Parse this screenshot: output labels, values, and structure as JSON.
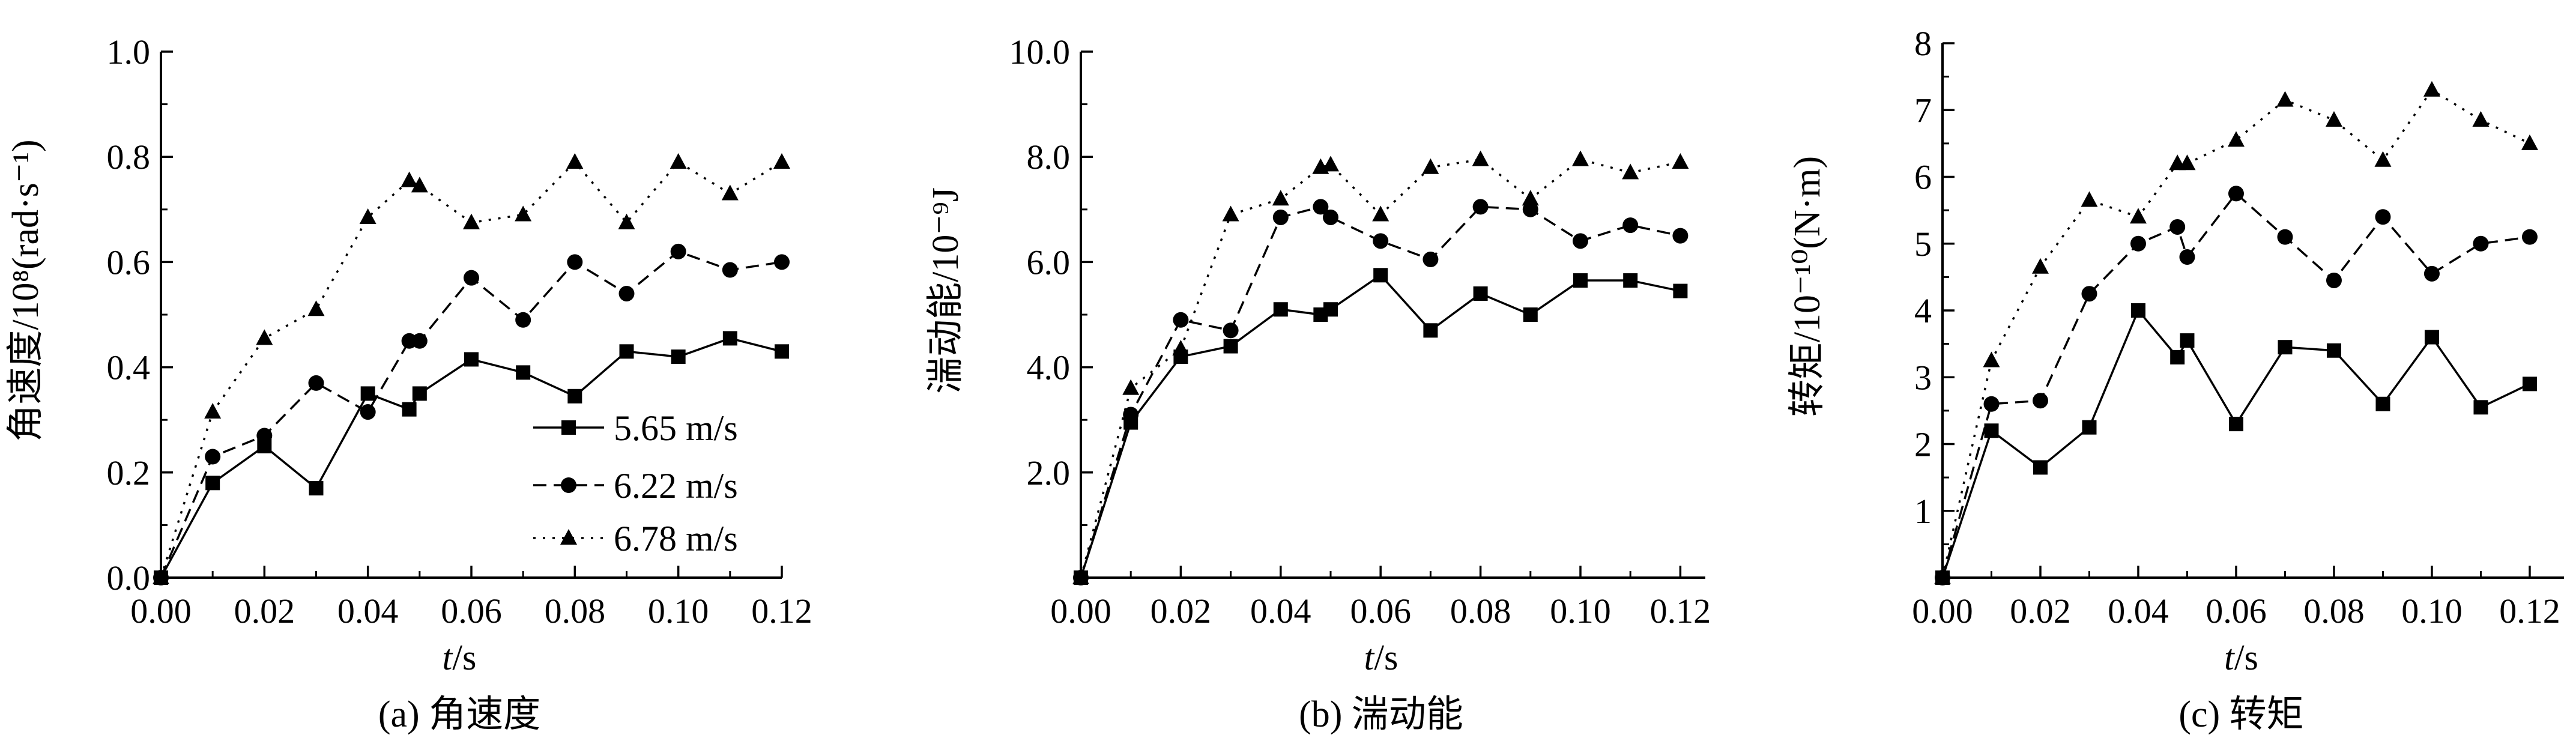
{
  "legend": {
    "placement": "lower-right of panel (a)",
    "entries": [
      {
        "label": "5.65 m/s",
        "marker": "square",
        "line": "solid"
      },
      {
        "label": "6.22 m/s",
        "marker": "circle",
        "line": "dashed"
      },
      {
        "label": "6.78 m/s",
        "marker": "triangle",
        "line": "dotted"
      }
    ]
  },
  "chart_data": [
    {
      "type": "line",
      "caption": "(a) 角速度",
      "ylabel": "角速度/10⁸(rad·s⁻¹)",
      "xlabel_italic": "t",
      "xlabel_unit": "/s",
      "xlim": [
        0,
        0.12
      ],
      "ylim": [
        0,
        1.0
      ],
      "xticks": [
        "0.00",
        "0.02",
        "0.04",
        "0.06",
        "0.08",
        "0.10",
        "0.12"
      ],
      "yticks": [
        "0.0",
        "0.2",
        "0.4",
        "0.6",
        "0.8",
        "1.0"
      ],
      "grid": false,
      "x": [
        0.0,
        0.01,
        0.02,
        0.03,
        0.04,
        0.048,
        0.05,
        0.06,
        0.07,
        0.08,
        0.09,
        0.1,
        0.11,
        0.12
      ],
      "series": [
        {
          "name": "5.65 m/s",
          "values": [
            0.0,
            0.18,
            0.25,
            0.17,
            0.35,
            0.32,
            0.35,
            0.415,
            0.39,
            0.345,
            0.43,
            0.42,
            0.455,
            0.43
          ]
        },
        {
          "name": "6.22 m/s",
          "values": [
            0.0,
            0.23,
            0.27,
            0.37,
            0.315,
            0.45,
            0.45,
            0.57,
            0.49,
            0.6,
            0.54,
            0.62,
            0.585,
            0.6
          ]
        },
        {
          "name": "6.78 m/s",
          "values": [
            0.0,
            0.315,
            0.455,
            0.51,
            0.685,
            0.755,
            0.745,
            0.675,
            0.69,
            0.79,
            0.675,
            0.79,
            0.73,
            0.79
          ]
        }
      ]
    },
    {
      "type": "line",
      "caption": "(b) 湍动能",
      "ylabel": "湍动能/10⁻⁹J",
      "xlabel_italic": "t",
      "xlabel_unit": "/s",
      "xlim": [
        0,
        0.125
      ],
      "ylim": [
        0,
        10.0
      ],
      "xticks": [
        "0.00",
        "0.02",
        "0.04",
        "0.06",
        "0.08",
        "0.10",
        "0.12"
      ],
      "yticks": [
        "",
        "2.0",
        "4.0",
        "6.0",
        "8.0",
        "10.0"
      ],
      "grid": false,
      "x": [
        0.0,
        0.01,
        0.02,
        0.03,
        0.04,
        0.048,
        0.05,
        0.06,
        0.07,
        0.08,
        0.09,
        0.1,
        0.11,
        0.12
      ],
      "series": [
        {
          "name": "5.65 m/s",
          "values": [
            0.0,
            2.95,
            4.2,
            4.4,
            5.1,
            5.0,
            5.1,
            5.75,
            4.7,
            5.4,
            5.0,
            5.65,
            5.65,
            5.45
          ]
        },
        {
          "name": "6.22 m/s",
          "values": [
            0.0,
            3.1,
            4.9,
            4.7,
            6.85,
            7.05,
            6.85,
            6.4,
            6.05,
            7.05,
            7.0,
            6.4,
            6.7,
            6.5
          ]
        },
        {
          "name": "6.78 m/s",
          "values": [
            0.0,
            3.6,
            4.35,
            6.9,
            7.2,
            7.8,
            7.85,
            6.9,
            7.8,
            7.95,
            7.2,
            7.95,
            7.7,
            7.9
          ]
        }
      ]
    },
    {
      "type": "line",
      "caption": "(c) 转矩",
      "ylabel": "转矩/10⁻¹⁰(N·m)",
      "xlabel_italic": "t",
      "xlabel_unit": "/s",
      "xlim": [
        0,
        0.127
      ],
      "ylim": [
        0,
        8
      ],
      "xticks": [
        "0.00",
        "0.02",
        "0.04",
        "0.06",
        "0.08",
        "0.10",
        "0.12"
      ],
      "yticks": [
        "",
        "1",
        "2",
        "3",
        "4",
        "5",
        "6",
        "7",
        "8"
      ],
      "grid": false,
      "x": [
        0.0,
        0.01,
        0.02,
        0.03,
        0.04,
        0.048,
        0.05,
        0.06,
        0.07,
        0.08,
        0.09,
        0.1,
        0.11,
        0.12
      ],
      "series": [
        {
          "name": "5.65 m/s",
          "values": [
            0.0,
            2.2,
            1.65,
            2.25,
            4.0,
            3.3,
            3.55,
            2.3,
            3.45,
            3.4,
            2.6,
            3.6,
            2.55,
            2.9
          ]
        },
        {
          "name": "6.22 m/s",
          "values": [
            0.0,
            2.6,
            2.65,
            4.25,
            5.0,
            5.25,
            4.8,
            5.75,
            5.1,
            4.45,
            5.4,
            4.55,
            5.0,
            5.1
          ]
        },
        {
          "name": "6.78 m/s",
          "values": [
            0.0,
            3.25,
            4.65,
            5.65,
            5.4,
            6.2,
            6.2,
            6.55,
            7.15,
            6.85,
            6.25,
            7.3,
            6.85,
            6.5
          ]
        }
      ]
    }
  ]
}
